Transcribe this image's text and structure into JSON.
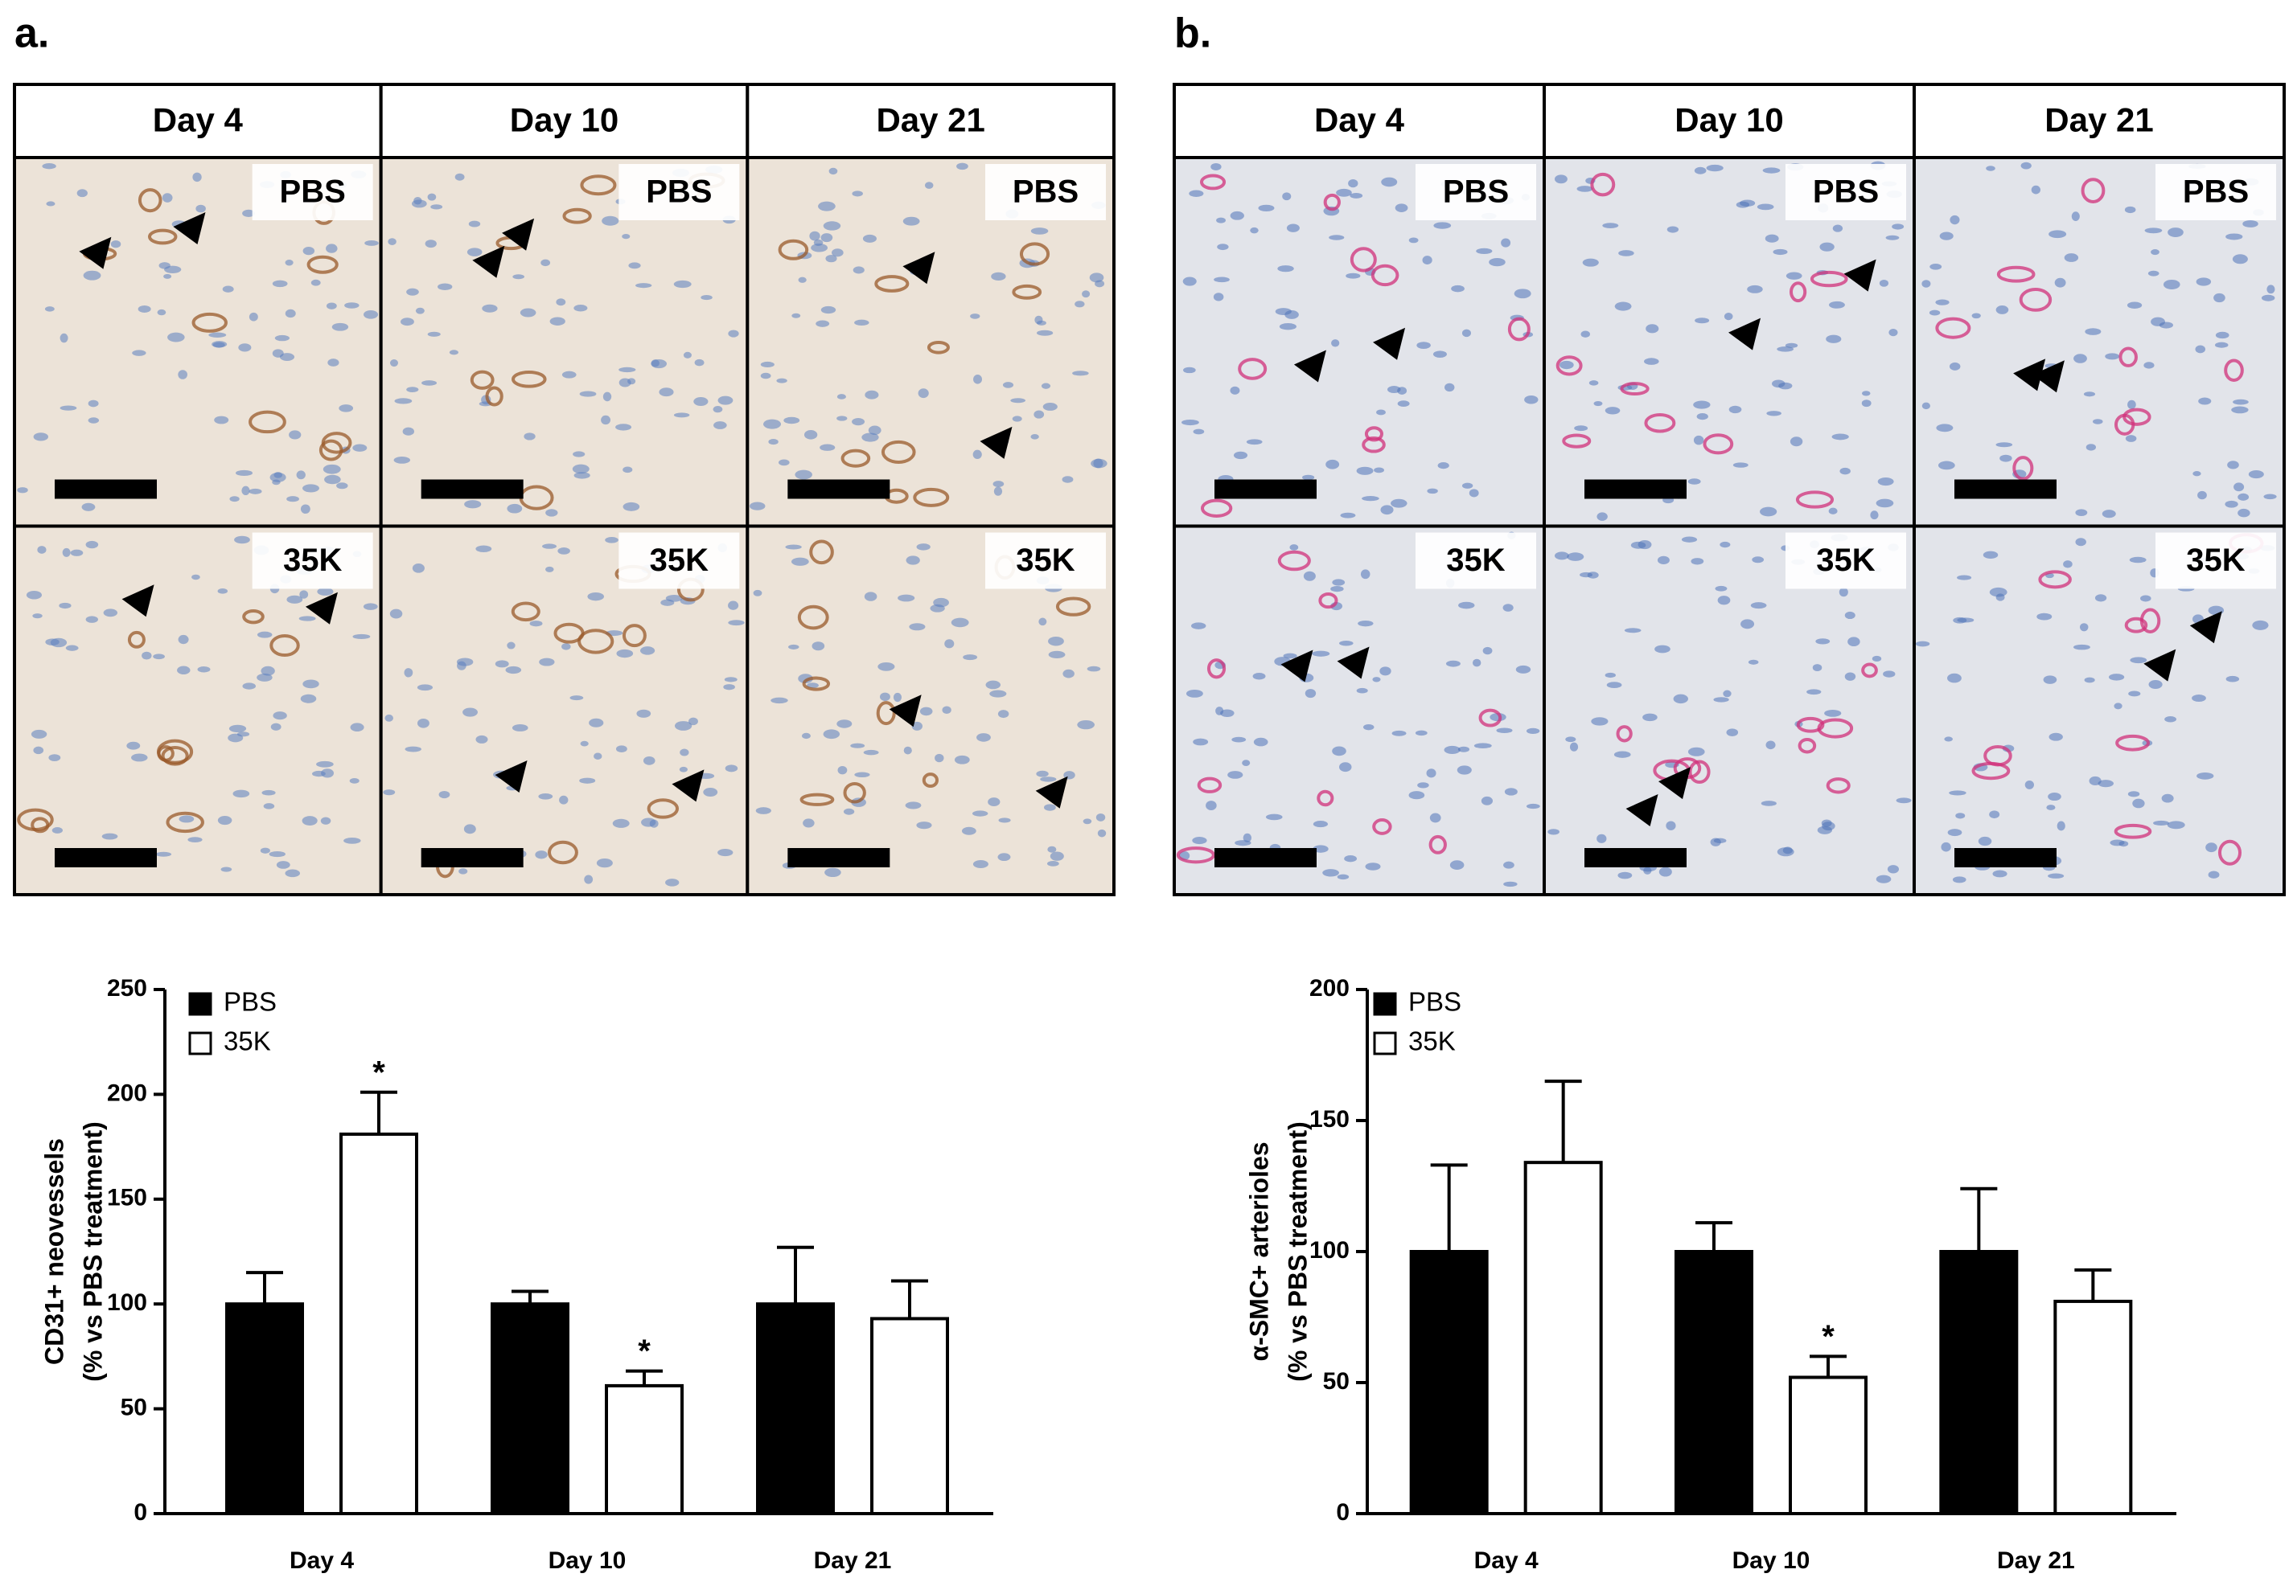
{
  "panels": [
    {
      "label": "a.",
      "columns": [
        "Day 4",
        "Day 10",
        "Day 21"
      ],
      "rows": [
        "PBS",
        "35K"
      ]
    },
    {
      "label": "b.",
      "columns": [
        "Day 4",
        "Day 10",
        "Day 21"
      ],
      "rows": [
        "PBS",
        "35K"
      ]
    }
  ],
  "chart_data": [
    {
      "type": "bar",
      "y_label": [
        "CD31+ neovessels",
        "(% vs PBS treatment)"
      ],
      "categories": [
        "Day 4",
        "Day 10",
        "Day 21"
      ],
      "series": [
        {
          "name": "PBS",
          "color": "#000000",
          "values": [
            100,
            100,
            100
          ],
          "errors": [
            15,
            6,
            27
          ]
        },
        {
          "name": "35K",
          "color": "#ffffff",
          "values": [
            181,
            61,
            93
          ],
          "errors": [
            20,
            7,
            18
          ]
        }
      ],
      "annotations": [
        {
          "text": "*",
          "category": "Day 4",
          "series": "35K"
        },
        {
          "text": "*",
          "category": "Day 10",
          "series": "35K"
        }
      ],
      "ylim": [
        0,
        250
      ],
      "yticks": [
        0,
        50,
        100,
        150,
        200,
        250
      ],
      "legend": "top-left"
    },
    {
      "type": "bar",
      "y_label": [
        "α-SMC+ arterioles",
        "(% vs PBS treatment)"
      ],
      "categories": [
        "Day 4",
        "Day 10",
        "Day 21"
      ],
      "series": [
        {
          "name": "PBS",
          "color": "#000000",
          "values": [
            100,
            100,
            100
          ],
          "errors": [
            33,
            11,
            24
          ]
        },
        {
          "name": "35K",
          "color": "#ffffff",
          "values": [
            134,
            52,
            81
          ],
          "errors": [
            31,
            8,
            12
          ]
        }
      ],
      "annotations": [
        {
          "text": "*",
          "category": "Day 10",
          "series": "35K"
        }
      ],
      "ylim": [
        0,
        200
      ],
      "yticks": [
        0,
        50,
        100,
        150,
        200
      ],
      "legend": "top-left"
    }
  ]
}
